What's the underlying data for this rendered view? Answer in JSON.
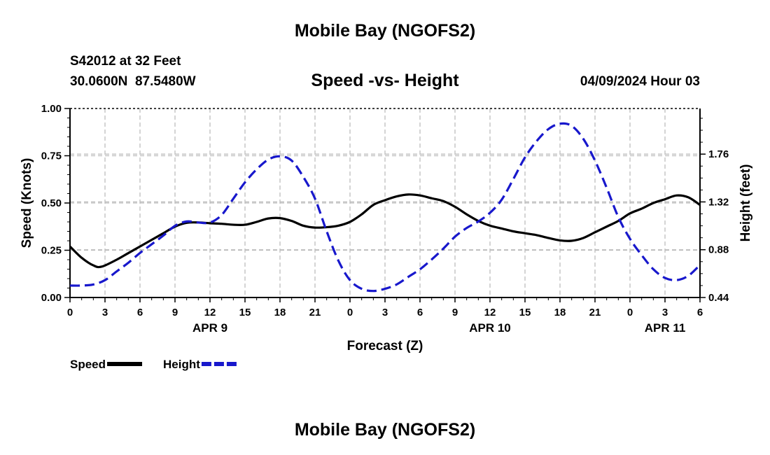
{
  "page": {
    "title": "Mobile Bay (NGOFS2)",
    "station": "S42012 at 32 Feet",
    "coords": "30.0600N  87.5480W",
    "subtitle": "Speed -vs- Height",
    "datetime": "04/09/2024 Hour 03",
    "footer_title": "Mobile Bay (NGOFS2)"
  },
  "chart_data": {
    "type": "line",
    "title": "Speed -vs- Height",
    "xlabel": "Forecast (Z)",
    "ylabel": "Speed (Knots)",
    "y2label": "Height (feet)",
    "x_unit": "hours from 04/09/2024 00Z",
    "xlim": [
      0,
      54
    ],
    "ylim": [
      0,
      1
    ],
    "y2lim": [
      0.44,
      2.18
    ],
    "grid": true,
    "x_ticks": [
      {
        "x": 0,
        "label": "0"
      },
      {
        "x": 3,
        "label": "3"
      },
      {
        "x": 6,
        "label": "6"
      },
      {
        "x": 9,
        "label": "9"
      },
      {
        "x": 12,
        "label": "12"
      },
      {
        "x": 15,
        "label": "15"
      },
      {
        "x": 18,
        "label": "18"
      },
      {
        "x": 21,
        "label": "21"
      },
      {
        "x": 24,
        "label": "0"
      },
      {
        "x": 27,
        "label": "3"
      },
      {
        "x": 30,
        "label": "6"
      },
      {
        "x": 33,
        "label": "9"
      },
      {
        "x": 36,
        "label": "12"
      },
      {
        "x": 39,
        "label": "15"
      },
      {
        "x": 42,
        "label": "18"
      },
      {
        "x": 45,
        "label": "21"
      },
      {
        "x": 48,
        "label": "0"
      },
      {
        "x": 51,
        "label": "3"
      },
      {
        "x": 54,
        "label": "6"
      }
    ],
    "date_labels": [
      {
        "x": 12,
        "label": "APR 9"
      },
      {
        "x": 36,
        "label": "APR 10"
      },
      {
        "x": 51,
        "label": "APR 11"
      }
    ],
    "y_ticks": [
      {
        "value": 0,
        "label": "0.00"
      },
      {
        "value": 0.25,
        "label": "0.25"
      },
      {
        "value": 0.5,
        "label": "0.50"
      },
      {
        "value": 0.75,
        "label": "0.75"
      },
      {
        "value": 1,
        "label": "1.00"
      }
    ],
    "y2_ticks": [
      {
        "value": 0.44,
        "label": "0.44"
      },
      {
        "value": 0.88,
        "label": "0.88"
      },
      {
        "value": 1.32,
        "label": "1.32"
      },
      {
        "value": 1.76,
        "label": "1.76"
      }
    ],
    "series": [
      {
        "name": "Speed",
        "axis": "left",
        "color": "#000000",
        "dash": "solid",
        "x": [
          0,
          1,
          2,
          2.7,
          4,
          5,
          6,
          7,
          8,
          9,
          10,
          11,
          12,
          13,
          14,
          15,
          16,
          17,
          18,
          19,
          20,
          21,
          22,
          23,
          24,
          25,
          26,
          27,
          28,
          29,
          30,
          31,
          32,
          33,
          34,
          35,
          36,
          37,
          38,
          39,
          40,
          41,
          42,
          43,
          44,
          45,
          46,
          47,
          48,
          49,
          50,
          51,
          52,
          53,
          54
        ],
        "values": [
          0.27,
          0.21,
          0.17,
          0.163,
          0.2,
          0.235,
          0.27,
          0.305,
          0.34,
          0.375,
          0.395,
          0.397,
          0.393,
          0.39,
          0.385,
          0.385,
          0.4,
          0.418,
          0.42,
          0.405,
          0.38,
          0.37,
          0.372,
          0.38,
          0.4,
          0.44,
          0.49,
          0.515,
          0.535,
          0.545,
          0.54,
          0.525,
          0.51,
          0.48,
          0.44,
          0.405,
          0.38,
          0.365,
          0.35,
          0.34,
          0.33,
          0.315,
          0.302,
          0.3,
          0.315,
          0.345,
          0.375,
          0.405,
          0.445,
          0.47,
          0.5,
          0.52,
          0.54,
          0.53,
          0.49
        ]
      },
      {
        "name": "Height",
        "axis": "right",
        "color": "#1818cc",
        "dash": "dashed",
        "x": [
          0,
          1,
          2,
          3,
          4,
          5,
          6,
          7,
          8,
          9,
          10,
          11,
          12,
          13,
          14,
          15,
          16,
          17,
          18,
          19,
          20,
          21,
          22,
          23,
          24,
          25,
          26,
          27,
          28,
          29,
          30,
          31,
          32,
          33,
          34,
          35,
          36,
          37,
          38,
          39,
          40,
          41,
          42,
          43,
          44,
          45,
          46,
          47,
          48,
          49,
          50,
          51,
          52,
          53,
          54
        ],
        "values": [
          0.55,
          0.55,
          0.56,
          0.6,
          0.68,
          0.76,
          0.85,
          0.93,
          1.01,
          1.1,
          1.14,
          1.13,
          1.13,
          1.2,
          1.35,
          1.5,
          1.62,
          1.71,
          1.74,
          1.7,
          1.55,
          1.35,
          1.05,
          0.78,
          0.6,
          0.52,
          0.5,
          0.52,
          0.56,
          0.63,
          0.7,
          0.79,
          0.89,
          1.0,
          1.08,
          1.14,
          1.22,
          1.34,
          1.53,
          1.73,
          1.88,
          1.99,
          2.04,
          2.02,
          1.9,
          1.7,
          1.45,
          1.18,
          0.98,
          0.83,
          0.7,
          0.62,
          0.6,
          0.64,
          0.74
        ]
      }
    ]
  }
}
